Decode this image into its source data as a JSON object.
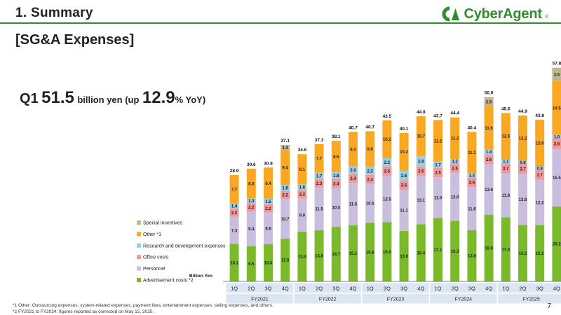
{
  "header": {
    "title": "1. Summary"
  },
  "logo": {
    "text": "CyberAgent",
    "reg": "®",
    "mark_color": "#2f8c2f"
  },
  "section_title": "[SG&A Expenses]",
  "headline": {
    "q": "Q1",
    "amount": "51.5",
    "text1": "billion yen (up",
    "pct": "12.9",
    "text2": "% YoY)"
  },
  "colors": {
    "Advertisement costs": "#7ab929",
    "Personnel": "#c9bedd",
    "Office costs": "#f0989a",
    "Research and development expenses": "#98cde8",
    "Other": "#f9a824",
    "Special incentives": "#c1b48f",
    "axis": "#555555",
    "table_fill": "#dce6f2"
  },
  "chart_data": {
    "type": "bar",
    "stacked": true,
    "unit_label": "Billion Yen",
    "categories": [
      "1Q",
      "2Q",
      "3Q",
      "4Q",
      "1Q",
      "2Q",
      "3Q",
      "4Q",
      "1Q",
      "2Q",
      "3Q",
      "4Q",
      "1Q",
      "2Q",
      "3Q",
      "4Q",
      "1Q",
      "2Q",
      "3Q",
      "4Q",
      "1Q"
    ],
    "fiscal_years": [
      {
        "label": "FY2021",
        "count": 4
      },
      {
        "label": "FY2022",
        "count": 4
      },
      {
        "label": "FY2023",
        "count": 4
      },
      {
        "label": "FY2024",
        "count": 4
      },
      {
        "label": "FY2025",
        "count": 4
      },
      {
        "label": "FY2026",
        "count": 1
      }
    ],
    "series": [
      {
        "name": "Advertisement costs",
        "legend": "Advertisement costs *2",
        "values": [
          10.1,
          9.5,
          10.0,
          11.5,
          13.4,
          13.8,
          14.7,
          15.1,
          15.8,
          16.0,
          13.6,
          15.4,
          17.1,
          16.3,
          13.8,
          18.0,
          17.3,
          15.2,
          15.2,
          20.2,
          20.1
        ],
        "labels": [
          "10.1",
          "9.5",
          "10.0",
          "11.5",
          "13.4",
          "13.8",
          "14.7",
          "15.1",
          "15.8",
          "16.0",
          "13.6",
          "15.4",
          "17.1",
          "16.3",
          "13.8",
          "18.0",
          "17.3",
          "15.2",
          "15.2",
          "20.2",
          "20.1"
        ]
      },
      {
        "name": "Personnel",
        "legend": "Personnel",
        "values": [
          7.3,
          9.4,
          8.6,
          10.7,
          9.0,
          11.5,
          10.5,
          11.5,
          10.5,
          12.5,
          11.1,
          13.1,
          11.0,
          13.0,
          11.6,
          13.6,
          11.8,
          13.8,
          12.2,
          15.5,
          12.3
        ],
        "labels": [
          "7.3",
          "9.4",
          "8.6",
          "10.7",
          "9.0",
          "11.5",
          "10.5",
          "11.5",
          "10.5",
          "12.5",
          "11.1",
          "13.1",
          "11.0",
          "13.0",
          "11.6",
          "13.6",
          "11.8",
          "13.8",
          "12.2",
          "15.5",
          "12.3"
        ]
      },
      {
        "name": "Office costs",
        "legend": "Office costs",
        "values": [
          2.2,
          2.2,
          2.2,
          2.2,
          2.2,
          2.3,
          2.4,
          2.4,
          2.4,
          2.5,
          2.5,
          2.5,
          2.5,
          2.5,
          2.6,
          2.6,
          2.7,
          2.7,
          2.7,
          2.8,
          2.8
        ],
        "labels": [
          "2.2",
          "2.2",
          "2.2",
          "2.2",
          "2.2",
          "2.3",
          "2.4",
          "2.4",
          "2.4",
          "2.5",
          "2.5",
          "2.5",
          "2.5",
          "2.5",
          "2.6",
          "2.6",
          "2.7",
          "2.7",
          "2.7",
          "2.8",
          "2.8"
        ]
      },
      {
        "name": "Research and development expenses",
        "legend": "Research and development expenses",
        "values": [
          1.4,
          1.3,
          1.5,
          1.6,
          1.6,
          1.7,
          1.8,
          2.0,
          2.2,
          2.2,
          2.6,
          2.8,
          1.7,
          1.2,
          1.2,
          1.4,
          1.1,
          0.8,
          0.9,
          1.0,
          1.3
        ],
        "labels": [
          "1.4",
          "1.3",
          "1.5",
          "1.6",
          "1.6",
          "1.7",
          "1.8",
          "2.0",
          "2.2",
          "2.2",
          "2.6",
          "2.8",
          "1.7",
          "1.2",
          "1.2",
          "1.4",
          "1.1",
          "0.8",
          "0.9",
          "1.0",
          "1.3"
        ]
      },
      {
        "name": "Other",
        "legend": "Other *1",
        "values": [
          7.7,
          8.0,
          8.4,
          9.4,
          8.1,
          7.7,
          8.5,
          9.3,
          9.6,
          10.2,
          10.2,
          10.7,
          11.2,
          11.2,
          11.1,
          11.6,
          12.5,
          12.2,
          12.6,
          14.5,
          14.9
        ],
        "labels": [
          "7.7",
          "8.0",
          "8.4",
          "9.4",
          "8.1",
          "7.7",
          "8.5",
          "9.3",
          "9.6",
          "10.2",
          "10.2",
          "10.7",
          "11.2",
          "11.2",
          "11.1",
          "11.6",
          "12.5",
          "12.2",
          "12.6",
          "14.5",
          "14.9"
        ]
      },
      {
        "name": "Special incentives",
        "legend": "Special incentives",
        "values": [
          0,
          0,
          0,
          1.4,
          0,
          0,
          0,
          0,
          0,
          0,
          0,
          0,
          0,
          0,
          0,
          2.5,
          0,
          0,
          0,
          3.6,
          0
        ],
        "labels": [
          "",
          "",
          "",
          "1.4",
          "",
          "",
          "",
          "",
          "",
          "",
          "",
          "",
          "",
          "",
          "",
          "2.5",
          "",
          "",
          "",
          "3.6",
          ""
        ]
      }
    ],
    "totals": [
      "28.9",
      "30.6",
      "30.8",
      "37.1",
      "34.6",
      "37.3",
      "38.1",
      "40.7",
      "40.7",
      "43.5",
      "40.1",
      "44.8",
      "43.7",
      "44.4",
      "40.4",
      "50.0",
      "45.6",
      "44.9",
      "43.8",
      "57.8",
      "51.5"
    ],
    "legend_order": [
      "Special incentives",
      "Other",
      "Research and development expenses",
      "Office costs",
      "Personnel",
      "Advertisement costs"
    ],
    "legend_placement": "bottom-left"
  },
  "footnotes": [
    "*1  Other: Outsourcing expenses, system-related expenses, payment fees, entertainment expenses, selling expenses, and others.",
    "*2  FY2021 to FY2024: figures reported as corrected on May 15, 2025."
  ],
  "page_number": "7"
}
